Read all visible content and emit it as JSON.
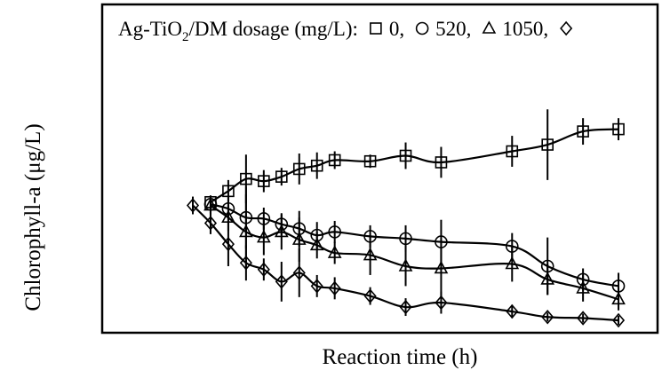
{
  "chart_data": {
    "type": "line",
    "title": "",
    "xlabel": "Reaction time (h)",
    "ylabel": "Chlorophyll-a (μg/L)",
    "x_ticks_shown": false,
    "y_ticks_shown": false,
    "grid": false,
    "legend": {
      "position": "top-left",
      "prefix": "Ag-TiO",
      "subscript": "2",
      "suffix": "/DM dosage (mg/L):",
      "entries": [
        {
          "marker": "square",
          "label": "0,"
        },
        {
          "marker": "circle",
          "label": "520,"
        },
        {
          "marker": "triangle",
          "label": "1050,"
        },
        {
          "marker": "diamond",
          "label": ""
        }
      ]
    },
    "xlim": [
      0,
      25
    ],
    "ylim": [
      0,
      100
    ],
    "series": [
      {
        "marker": "square",
        "x": [
          1,
          2,
          3,
          4,
          5,
          6,
          7,
          8,
          10,
          12,
          14,
          18,
          20,
          22,
          24
        ],
        "y": [
          53.5,
          58.5,
          64,
          63,
          65,
          68.5,
          70,
          72.5,
          72,
          74.5,
          71.5,
          76.5,
          79.5,
          85.5,
          86.5
        ],
        "err": [
          3,
          5,
          11,
          5,
          4,
          7,
          6,
          4,
          3,
          6,
          7,
          7,
          16,
          6,
          5
        ]
      },
      {
        "marker": "circle",
        "x": [
          1,
          2,
          3,
          4,
          5,
          6,
          7,
          8,
          10,
          12,
          14,
          18,
          20,
          22,
          24
        ],
        "y": [
          52.5,
          50.5,
          46.5,
          46,
          43.5,
          41.5,
          38.5,
          40,
          38,
          37,
          35.5,
          33.5,
          24.5,
          18.5,
          15.5
        ],
        "err": [
          4,
          6,
          14,
          5,
          5,
          8,
          6,
          5,
          5,
          6,
          10,
          6,
          13,
          5,
          6
        ]
      },
      {
        "marker": "triangle",
        "x": [
          1,
          2,
          3,
          4,
          5,
          6,
          7,
          8,
          10,
          12,
          14,
          18,
          20,
          22,
          24
        ],
        "y": [
          52,
          46.5,
          40,
          37.5,
          40,
          36.5,
          34,
          30.5,
          29.5,
          24.5,
          23.5,
          25.5,
          18.5,
          14.5,
          9.5
        ],
        "err": [
          4,
          6,
          17,
          8,
          8,
          10,
          6,
          5,
          9,
          9,
          13,
          8,
          7,
          6,
          5
        ]
      },
      {
        "marker": "diamond",
        "x": [
          0,
          1,
          2,
          3,
          4,
          5,
          6,
          7,
          8,
          10,
          12,
          14,
          18,
          20,
          22,
          24
        ],
        "y": [
          52,
          44,
          34.5,
          26,
          23,
          17.5,
          21.5,
          15.5,
          14.5,
          11,
          6,
          8,
          4,
          1.5,
          1,
          0
        ],
        "err": [
          4,
          5,
          10,
          8,
          5,
          9,
          11,
          5,
          5,
          4,
          4,
          5,
          3,
          2,
          2,
          2
        ]
      }
    ]
  }
}
